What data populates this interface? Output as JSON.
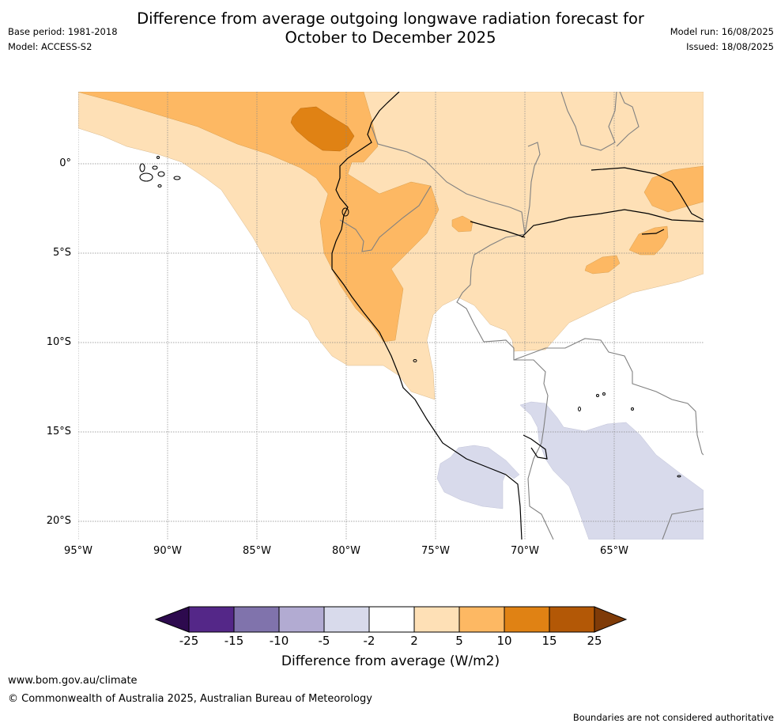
{
  "header": {
    "title_line1": "Difference from average outgoing longwave radiation forecast for",
    "title_line2": "October to December 2025",
    "base_period": "Base period: 1981-2018",
    "model": "Model: ACCESS-S2",
    "model_run": "Model run: 16/08/2025",
    "issued": "Issued: 18/08/2025"
  },
  "map": {
    "lat_labels": [
      "0°",
      "5°S",
      "10°S",
      "15°S",
      "20°S"
    ],
    "lon_labels": [
      "95°W",
      "90°W",
      "85°W",
      "80°W",
      "75°W",
      "70°W",
      "65°W"
    ]
  },
  "colorbar": {
    "tick_labels": [
      "-25",
      "-15",
      "-10",
      "-5",
      "-2",
      "2",
      "5",
      "10",
      "15",
      "25"
    ],
    "colors": [
      "#2d0a4e",
      "#542788",
      "#8073ac",
      "#b2abd2",
      "#d8daeb",
      "#ffffff",
      "#fee0b6",
      "#fdb863",
      "#e08214",
      "#b35806",
      "#7f3b08"
    ],
    "title": "Difference from average (W/m2)"
  },
  "footer": {
    "url": "www.bom.gov.au/climate",
    "copyright": "© Commonwealth of Australia 2025, Australian Bureau of Meteorology",
    "disclaimer": "Boundaries are not considered authoritative"
  }
}
